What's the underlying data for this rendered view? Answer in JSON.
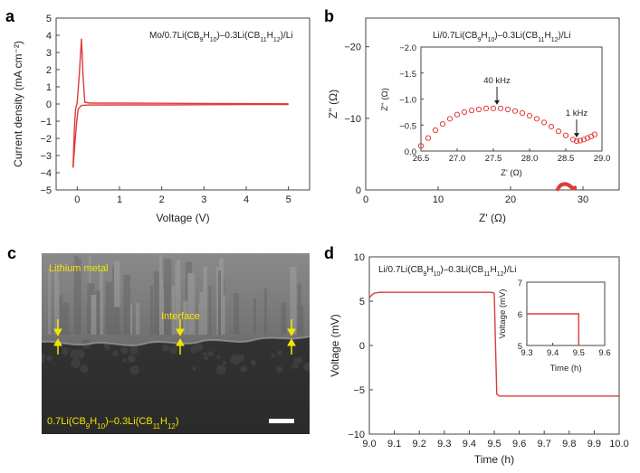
{
  "chart_data": [
    {
      "panel": "a",
      "type": "line",
      "annotation": "Mo/0.7Li(CB9H10)–0.3Li(CB11H12)/Li",
      "xlabel": "Voltage (V)",
      "ylabel": "Current density (mA cm⁻²)",
      "xlim": [
        -0.5,
        5.5
      ],
      "ylim": [
        -5,
        5
      ],
      "xticks": [
        0,
        1,
        2,
        3,
        4,
        5
      ],
      "yticks": [
        -5,
        -4,
        -3,
        -2,
        -1,
        0,
        1,
        2,
        3,
        4,
        5
      ],
      "series": [
        {
          "values": [
            [
              -0.1,
              -3.7
            ],
            [
              -0.07,
              -1.5
            ],
            [
              -0.04,
              -0.3
            ],
            [
              0.0,
              0.1
            ],
            [
              0.05,
              1.8
            ],
            [
              0.1,
              3.8
            ],
            [
              0.14,
              1.5
            ],
            [
              0.18,
              0.1
            ],
            [
              0.3,
              0.05
            ],
            [
              1,
              0.05
            ],
            [
              2,
              0.04
            ],
            [
              3,
              0.03
            ],
            [
              4,
              0.02
            ],
            [
              5,
              0.01
            ]
          ]
        },
        {
          "values": [
            [
              5,
              -0.03
            ],
            [
              4,
              -0.03
            ],
            [
              3,
              -0.04
            ],
            [
              2,
              -0.05
            ],
            [
              1,
              -0.05
            ],
            [
              0.3,
              -0.06
            ],
            [
              0.1,
              -0.08
            ],
            [
              0.02,
              -0.3
            ],
            [
              -0.02,
              -1.2
            ],
            [
              -0.06,
              -2.5
            ],
            [
              -0.1,
              -3.7
            ]
          ]
        }
      ]
    },
    {
      "panel": "b",
      "type": "scatter",
      "annotation": "Li/0.7Li(CB9H10)–0.3Li(CB11H12)/Li",
      "xlabel": "Z' (Ω)",
      "ylabel": "Z'' (Ω)",
      "xlim": [
        0,
        35
      ],
      "ylim": [
        0,
        -24
      ],
      "xticks": [
        0,
        10,
        20,
        30
      ],
      "yticks": [
        0,
        -10,
        -20
      ],
      "series": [
        {
          "values": [
            [
              26.5,
              0.1
            ],
            [
              26.6,
              0.25
            ],
            [
              26.7,
              0.4
            ],
            [
              26.8,
              0.52
            ],
            [
              26.9,
              0.62
            ],
            [
              27.0,
              0.7
            ],
            [
              27.1,
              0.75
            ],
            [
              27.2,
              0.78
            ],
            [
              27.3,
              0.8
            ],
            [
              27.4,
              0.82
            ],
            [
              27.5,
              0.82
            ],
            [
              27.6,
              0.82
            ],
            [
              27.7,
              0.8
            ],
            [
              27.8,
              0.77
            ],
            [
              27.9,
              0.73
            ],
            [
              28.0,
              0.68
            ],
            [
              28.1,
              0.62
            ],
            [
              28.2,
              0.55
            ],
            [
              28.3,
              0.47
            ],
            [
              28.4,
              0.38
            ],
            [
              28.5,
              0.3
            ],
            [
              28.6,
              0.22
            ],
            [
              28.65,
              0.19
            ],
            [
              28.7,
              0.2
            ],
            [
              28.75,
              0.22
            ],
            [
              28.8,
              0.25
            ],
            [
              28.85,
              0.28
            ],
            [
              28.9,
              0.32
            ]
          ]
        }
      ],
      "inset": {
        "xlabel": "Z' (Ω)",
        "ylabel": "Z'' (Ω)",
        "xlim": [
          26.5,
          29.0
        ],
        "ylim": [
          0.0,
          -2.0
        ],
        "xticks": [
          26.5,
          27.0,
          27.5,
          28.0,
          28.5,
          29.0
        ],
        "yticks": [
          0.0,
          -0.5,
          -1.0,
          -1.5,
          -2.0
        ],
        "annotations": [
          {
            "text": "40 kHz",
            "x": 27.55,
            "y": -0.82
          },
          {
            "text": "1 kHz",
            "x": 28.65,
            "y": -0.19
          }
        ]
      }
    },
    {
      "panel": "c",
      "type": "image",
      "labels": [
        "Lithium metal",
        "Interface",
        "0.7Li(CB9H10)–0.3Li(CB11H12)"
      ]
    },
    {
      "panel": "d",
      "type": "line",
      "annotation": "Li/0.7Li(CB9H10)–0.3Li(CB11H12)/Li",
      "xlabel": "Time (h)",
      "ylabel": "Voltage (mV)",
      "xlim": [
        9.0,
        10.0
      ],
      "ylim": [
        -10,
        10
      ],
      "xticks": [
        9.0,
        9.1,
        9.2,
        9.3,
        9.4,
        9.5,
        9.6,
        9.7,
        9.8,
        9.9,
        10.0
      ],
      "yticks": [
        -10,
        -5,
        0,
        5,
        10
      ],
      "series": [
        {
          "values": [
            [
              9.0,
              5.4
            ],
            [
              9.01,
              5.7
            ],
            [
              9.02,
              5.9
            ],
            [
              9.04,
              6.0
            ],
            [
              9.1,
              6.0
            ],
            [
              9.2,
              6.0
            ],
            [
              9.3,
              6.0
            ],
            [
              9.4,
              6.0
            ],
            [
              9.49,
              6.0
            ],
            [
              9.5,
              5.9
            ],
            [
              9.505,
              0
            ],
            [
              9.51,
              -5.5
            ],
            [
              9.52,
              -5.7
            ],
            [
              9.6,
              -5.7
            ],
            [
              9.7,
              -5.7
            ],
            [
              9.8,
              -5.7
            ],
            [
              9.9,
              -5.7
            ],
            [
              10.0,
              -5.7
            ]
          ]
        }
      ],
      "inset": {
        "xlabel": "Time (h)",
        "ylabel": "Voltage (mV)",
        "xlim": [
          9.3,
          9.6
        ],
        "ylim": [
          5,
          7
        ],
        "xticks": [
          9.3,
          9.4,
          9.5,
          9.6
        ],
        "yticks": [
          5,
          6,
          7
        ],
        "values": [
          [
            9.3,
            6.0
          ],
          [
            9.5,
            6.0
          ],
          [
            9.5,
            5.0
          ]
        ]
      }
    }
  ],
  "labels": {
    "a": "a",
    "b": "b",
    "c": "c",
    "d": "d",
    "formula_a_prefix": "Mo/0.7Li(CB",
    "formula_b_prefix": "Li/0.7Li(CB",
    "formula_d_prefix": "Li/0.7Li(CB"
  },
  "colors": {
    "line": "#e03a3a",
    "axis": "#444444"
  }
}
